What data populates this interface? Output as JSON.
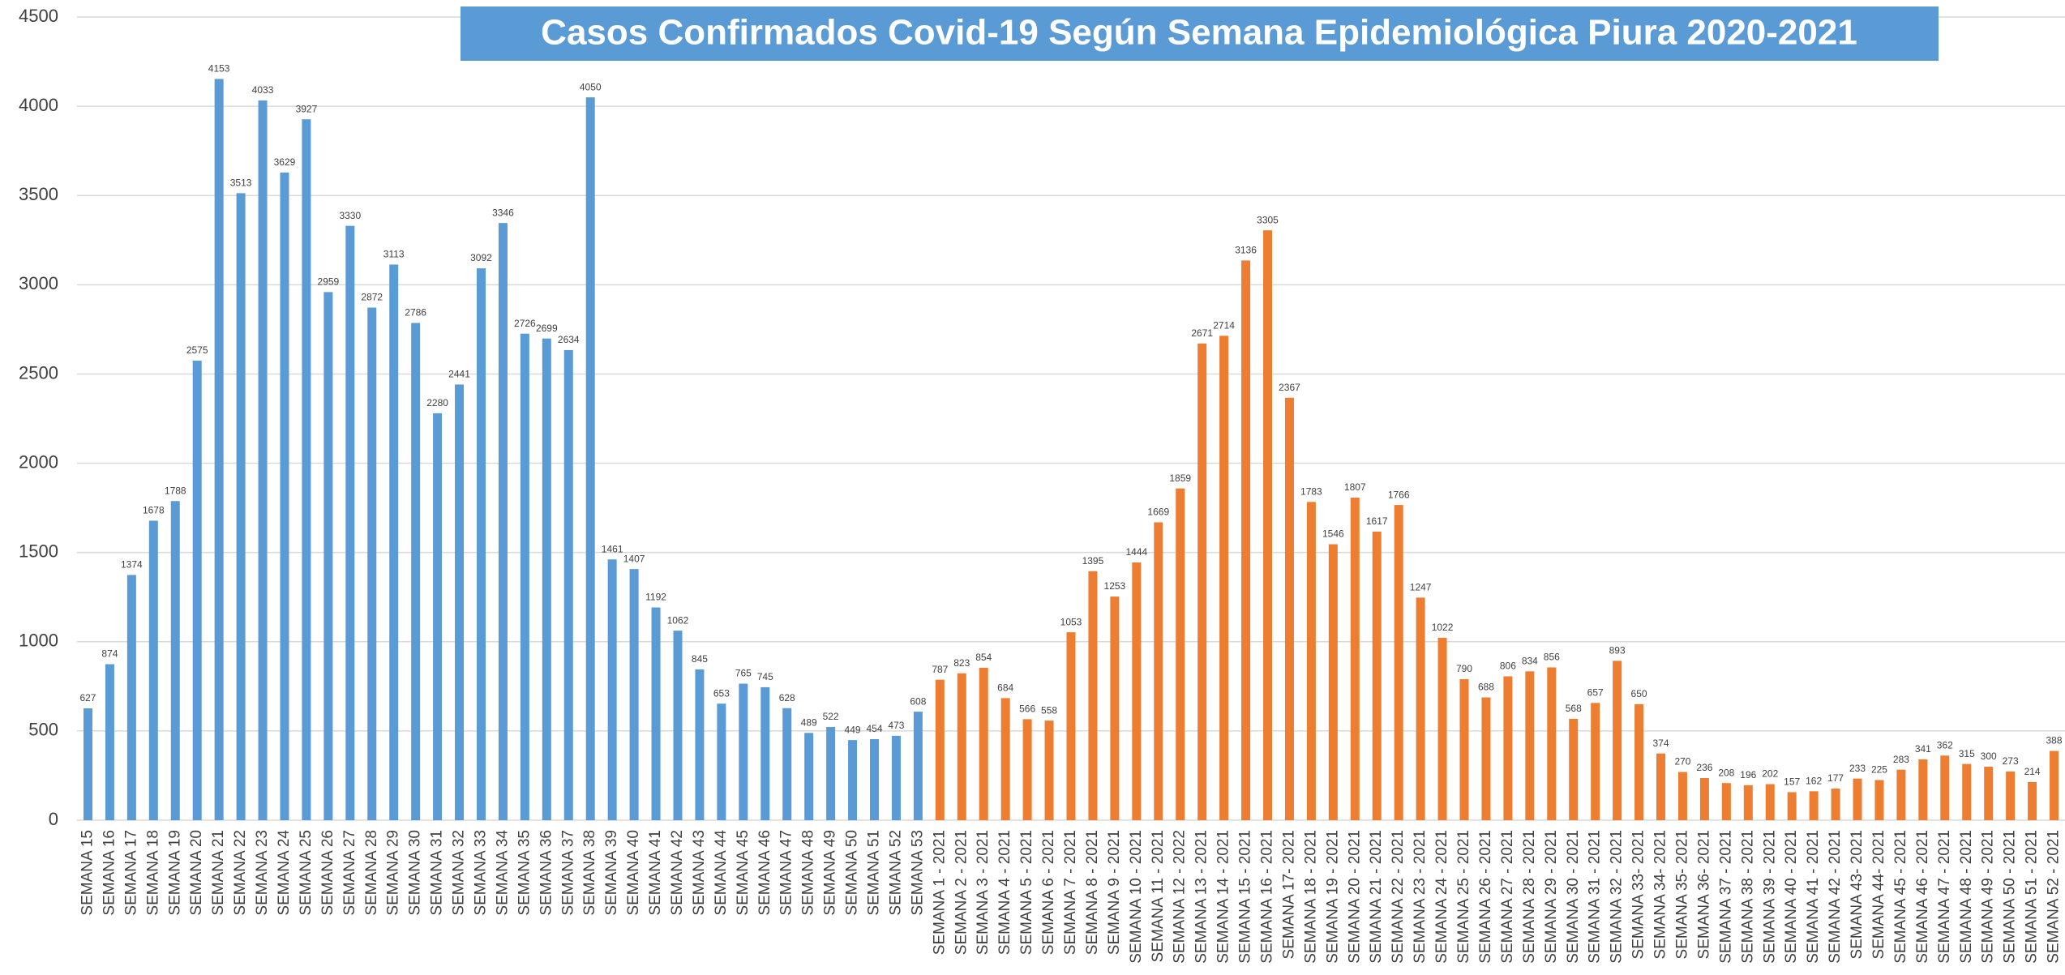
{
  "chart_data": {
    "type": "bar",
    "title": "Casos Confirmados  Covid-19 Según Semana Epidemiológica Piura 2020-2021",
    "categories": [
      "SEMANA 15",
      "SEMANA 16",
      "SEMANA 17",
      "SEMANA 18",
      "SEMANA 19",
      "SEMANA 20",
      "SEMANA 21",
      "SEMANA 22",
      "SEMANA 23",
      "SEMANA 24",
      "SEMANA 25",
      "SEMANA 26",
      "SEMANA 27",
      "SEMANA 28",
      "SEMANA 29",
      "SEMANA 30",
      "SEMANA 31",
      "SEMANA 32",
      "SEMANA 33",
      "SEMANA 34",
      "SEMANA 35",
      "SEMANA 36",
      "SEMANA 37",
      "SEMANA 38",
      "SEMANA 39",
      "SEMANA 40",
      "SEMANA 41",
      "SEMANA 42",
      "SEMANA 43",
      "SEMANA 44",
      "SEMANA 45",
      "SEMANA 46",
      "SEMANA 47",
      "SEMANA 48",
      "SEMANA 49",
      "SEMANA 50",
      "SEMANA 51",
      "SEMANA 52",
      "SEMANA 53",
      "SEMANA 1 - 2021",
      "SEMANA 2 - 2021",
      "SEMANA 3 - 2021",
      "SEMANA 4 - 2021",
      "SEMANA 5 - 2021",
      "SEMANA 6 - 2021",
      "SEMANA 7 - 2021",
      "SEMANA 8 - 2021",
      "SEMANA 9 - 2021",
      "SEMANA 10 - 2021",
      "SEMANA 11 - 2021",
      "SEMANA 12 - 2022",
      "SEMANA 13 - 2021",
      "SEMANA 14 - 2021",
      "SEMANA 15 - 2021",
      "SEMANA 16 - 2021",
      "SEMANA 17- 2021",
      "SEMANA 18 - 2021",
      "SEMANA 19 - 2021",
      "SEMANA 20 - 2021",
      "SEMANA 21 - 2021",
      "SEMANA 22 - 2021",
      "SEMANA 23 - 2021",
      "SEMANA 24 - 2021",
      "SEMANA 25 - 2021",
      "SEMANA 26 - 2021",
      "SEMANA 27 - 2021",
      "SEMANA 28 - 2021",
      "SEMANA 29 - 2021",
      "SEMANA 30 - 2021",
      "SEMANA 31 - 2021",
      "SEMANA 32 - 2021",
      "SEMANA 33- 2021",
      "SEMANA 34- 2021",
      "SEMANA 35- 2021",
      "SEMANA 36- 2021",
      "SEMANA 37 - 2021",
      "SEMANA 38 - 2021",
      "SEMANA 39 - 2021",
      "SEMANA 40 - 2021",
      "SEMANA 41 - 2021",
      "SEMANA 42 - 2021",
      "SEMANA 43- 2021",
      "SEMANA 44- 2021",
      "SEMANA 45 - 2021",
      "SEMANA 46 - 2021",
      "SEMANA 47 - 2021",
      "SEMANA 48 - 2021",
      "SEMANA 49 - 2021",
      "SEMANA 50 - 2021",
      "SEMANA 51 - 2021",
      "SEMANA 52 - 2021"
    ],
    "series": [
      {
        "color": "#5b9bd5",
        "values": [
          627,
          874,
          1374,
          1678,
          1788,
          2575,
          4153,
          3513,
          4033,
          3629,
          3927,
          2959,
          3330,
          2872,
          3113,
          2786,
          2280,
          2441,
          3092,
          3346,
          2726,
          2699,
          2634,
          4050,
          1461,
          1407,
          1192,
          1062,
          845,
          653,
          765,
          745,
          628,
          489,
          522,
          449,
          454,
          473,
          608,
          null,
          null,
          null,
          null,
          null,
          null,
          null,
          null,
          null,
          null,
          null,
          null,
          null,
          null,
          null,
          null,
          null,
          null,
          null,
          null,
          null,
          null,
          null,
          null,
          null,
          null,
          null,
          null,
          null,
          null,
          null,
          null,
          null,
          null,
          null,
          null,
          null,
          null,
          null,
          null,
          null,
          null,
          null,
          null,
          null,
          null,
          null,
          null,
          null,
          null,
          null,
          null
        ]
      },
      {
        "color": "#ed7d31",
        "values": [
          null,
          null,
          null,
          null,
          null,
          null,
          null,
          null,
          null,
          null,
          null,
          null,
          null,
          null,
          null,
          null,
          null,
          null,
          null,
          null,
          null,
          null,
          null,
          null,
          null,
          null,
          null,
          null,
          null,
          null,
          null,
          null,
          null,
          null,
          null,
          null,
          null,
          null,
          null,
          787,
          823,
          854,
          684,
          566,
          558,
          1053,
          1395,
          1253,
          1444,
          1669,
          1859,
          2671,
          2714,
          3136,
          3305,
          2367,
          1783,
          1546,
          1807,
          1617,
          1766,
          1247,
          1022,
          790,
          688,
          806,
          834,
          856,
          568,
          657,
          893,
          650,
          374,
          270,
          236,
          208,
          196,
          202,
          157,
          162,
          177,
          233,
          225,
          283,
          341,
          362,
          315,
          300,
          273,
          214,
          388
        ]
      }
    ],
    "ylim": [
      0,
      4500
    ],
    "yticks": [
      0,
      500,
      1000,
      1500,
      2000,
      2500,
      3000,
      3500,
      4000,
      4500
    ],
    "grid": true
  }
}
